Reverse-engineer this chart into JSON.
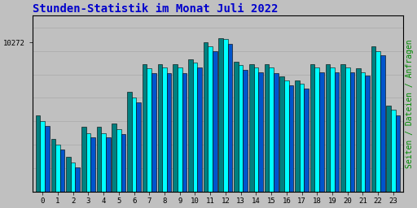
{
  "title": "Stunden-Statistik im Monat Juli 2022",
  "title_color": "#0000cc",
  "title_fontsize": 10,
  "ylabel": "Seiten / Dateien / Anfragen",
  "ylabel_color": "#008800",
  "ylabel_fontsize": 7,
  "ytick_label": "10272",
  "ytick_value": 10272,
  "background_color": "#c0c0c0",
  "plot_bg_color": "#c0c0c0",
  "hours": [
    0,
    1,
    2,
    3,
    4,
    5,
    6,
    7,
    8,
    9,
    10,
    11,
    12,
    13,
    14,
    15,
    16,
    17,
    18,
    19,
    20,
    21,
    22,
    23
  ],
  "bar_width": 0.3,
  "cyan_values": [
    9600,
    9400,
    9250,
    9500,
    9500,
    9530,
    9800,
    10050,
    10060,
    10060,
    10100,
    10240,
    10300,
    10080,
    10060,
    10060,
    9950,
    9920,
    10060,
    10060,
    10060,
    10020,
    10200,
    9700
  ],
  "teal_values": [
    9650,
    9450,
    9300,
    9550,
    9550,
    9580,
    9850,
    10090,
    10090,
    10090,
    10130,
    10272,
    10310,
    10110,
    10090,
    10090,
    9980,
    9950,
    10090,
    10090,
    10090,
    10050,
    10240,
    9730
  ],
  "blue_values": [
    9560,
    9360,
    9210,
    9460,
    9460,
    9490,
    9760,
    10010,
    10010,
    10010,
    10060,
    10200,
    10260,
    10040,
    10020,
    10010,
    9910,
    9880,
    10020,
    10020,
    10020,
    9990,
    10160,
    9650
  ],
  "cyan_color": "#00ffff",
  "teal_color": "#008080",
  "blue_color": "#0055cc",
  "ymin": 9000,
  "ymax": 10500,
  "font_family": "monospace",
  "grid_color": "#aaaaaa",
  "border_color": "#000000"
}
